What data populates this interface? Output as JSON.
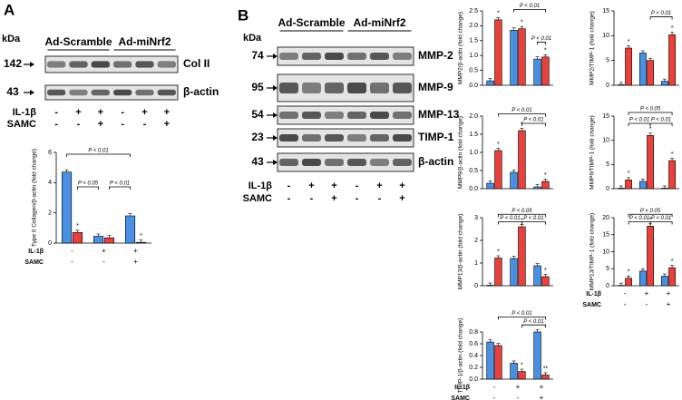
{
  "blots": [
    {
      "panel": "A",
      "kda": "kDa",
      "groups": [
        "Ad-Scramble",
        "Ad-miNrf2"
      ],
      "rows": [
        {
          "kda": "142",
          "name": "Col II"
        },
        {
          "kda": "43",
          "name": "β-actin"
        }
      ],
      "treatments": [
        {
          "label": "IL-1β",
          "signs": [
            "-",
            "+",
            "+",
            "-",
            "+",
            "+"
          ]
        },
        {
          "label": "SAMC",
          "signs": [
            "-",
            "-",
            "+",
            "-",
            "-",
            "+"
          ]
        }
      ]
    },
    {
      "panel": "B",
      "kda": "kDa",
      "groups": [
        "Ad-Scramble",
        "Ad-miNrf2"
      ],
      "rows": [
        {
          "kda": "74",
          "name": "MMP-2"
        },
        {
          "kda": "95",
          "name": "MMP-9"
        },
        {
          "kda": "54",
          "name": "MMP-13"
        },
        {
          "kda": "23",
          "name": "TIMP-1"
        },
        {
          "kda": "43",
          "name": "β-actin"
        }
      ],
      "treatments": [
        {
          "label": "IL-1β",
          "signs": [
            "-",
            "+",
            "+",
            "-",
            "+",
            "+"
          ]
        },
        {
          "label": "SAMC",
          "signs": [
            "-",
            "-",
            "+",
            "-",
            "-",
            "+"
          ]
        }
      ]
    }
  ],
  "chart_data": [
    {
      "type": "bar",
      "y_label": "Type II Collagen/β-actin (fold change)",
      "ylim": [
        0,
        6
      ],
      "yticks": [
        0,
        2,
        4,
        6
      ],
      "series": [
        {
          "color": "#4a90e2",
          "values": [
            4.7,
            0.45,
            1.8
          ]
        },
        {
          "color": "#e8403a",
          "values": [
            0.7,
            0.35,
            0.05
          ]
        }
      ],
      "annotations": [
        "P < 0.01",
        "P < 0.05",
        "P < 0.01",
        "*",
        "*"
      ],
      "treatments": [
        {
          "label": "IL-1β",
          "signs": [
            "-",
            "+",
            "+"
          ]
        },
        {
          "label": "SAMC",
          "signs": [
            "-",
            "-",
            "+"
          ]
        }
      ]
    },
    {
      "type": "bar",
      "y_label": "MMP2/β-actin (fold change)",
      "ylim": [
        0,
        2.5
      ],
      "yticks": [
        {
          "value": 0,
          "label": "0.0"
        },
        0.5,
        {
          "value": 1,
          "label": "1.0"
        },
        1.5,
        {
          "value": 2,
          "label": "2.0"
        },
        2.5
      ],
      "series": [
        {
          "color": "#4a90e2",
          "values": [
            0.15,
            1.85,
            0.88
          ]
        },
        {
          "color": "#e8403a",
          "values": [
            2.2,
            1.9,
            0.95
          ]
        }
      ],
      "annotations": [
        "P < 0.01",
        "P < 0.01",
        "*",
        "*",
        "*"
      ]
    },
    {
      "type": "bar",
      "y_label": "MMP2/TIMP-1 (fold change)",
      "ylim": [
        0,
        15
      ],
      "yticks": [
        0,
        5,
        10,
        15
      ],
      "series": [
        {
          "color": "#4a90e2",
          "values": [
            0.1,
            6.5,
            0.8
          ]
        },
        {
          "color": "#e8403a",
          "values": [
            7.5,
            5.0,
            10.2
          ]
        }
      ],
      "annotations": [
        "P < 0.01",
        "*",
        "*"
      ]
    },
    {
      "type": "bar",
      "y_label": "MMP9/β-actin (fold change)",
      "ylim": [
        0,
        2
      ],
      "yticks": [
        {
          "value": 0,
          "label": "0.0"
        },
        0.5,
        {
          "value": 1,
          "label": "1.0"
        },
        1.5,
        {
          "value": 2,
          "label": "2.0"
        }
      ],
      "series": [
        {
          "color": "#4a90e2",
          "values": [
            0.15,
            0.45,
            0.05
          ]
        },
        {
          "color": "#e8403a",
          "values": [
            1.05,
            1.6,
            0.2
          ]
        }
      ],
      "annotations": [
        "P < 0.01",
        "P < 0.01",
        "*",
        "*",
        "*"
      ]
    },
    {
      "type": "bar",
      "y_label": "MMP9/TIMP-1 (fold change)",
      "ylim": [
        0,
        15
      ],
      "yticks": [
        0,
        5,
        10,
        15
      ],
      "series": [
        {
          "color": "#4a90e2",
          "values": [
            0.1,
            1.5,
            0.1
          ]
        },
        {
          "color": "#e8403a",
          "values": [
            1.8,
            11,
            5.8
          ]
        }
      ],
      "annotations": [
        "P < 0.05",
        "P < 0.01",
        "P < 0.01",
        "*",
        "*",
        "*"
      ]
    },
    {
      "type": "bar",
      "y_label": "MMP13/β-actin (fold change)",
      "ylim": [
        0,
        3
      ],
      "yticks": [
        0,
        1,
        2,
        3
      ],
      "series": [
        {
          "color": "#4a90e2",
          "values": [
            0.02,
            1.2,
            0.88
          ]
        },
        {
          "color": "#e8403a",
          "values": [
            1.22,
            2.6,
            0.4
          ]
        }
      ],
      "annotations": [
        "P < 0.05",
        "P < 0.01",
        "P < 0.01",
        "*",
        "*",
        "*"
      ]
    },
    {
      "type": "bar",
      "y_label": "MMP13/TIMP-1 (fold change)",
      "ylim": [
        0,
        20
      ],
      "yticks": [
        0,
        5,
        10,
        15,
        20
      ],
      "series": [
        {
          "color": "#4a90e2",
          "values": [
            0.1,
            4.3,
            2.8
          ]
        },
        {
          "color": "#e8403a",
          "values": [
            2.2,
            17.5,
            5.3
          ]
        }
      ],
      "annotations": [
        "P < 0.05",
        "P < 0.01",
        "P < 0.01",
        "*",
        "*",
        "*"
      ],
      "treatments": [
        {
          "label": "IL-1β",
          "signs": [
            "-",
            "+",
            "+"
          ]
        },
        {
          "label": "SAMC",
          "signs": [
            "-",
            "-",
            "+"
          ]
        }
      ]
    },
    {
      "type": "bar",
      "y_label": "TIMP-1/β-actin (fold change)",
      "ylim": [
        0,
        0.8
      ],
      "yticks": [
        {
          "value": 0,
          "label": "0.0"
        },
        0.2,
        0.4,
        0.6,
        0.8
      ],
      "series": [
        {
          "color": "#4a90e2",
          "values": [
            0.63,
            0.27,
            0.8
          ]
        },
        {
          "color": "#e8403a",
          "values": [
            0.57,
            0.13,
            0.07
          ]
        }
      ],
      "annotations": [
        "P < 0.01",
        "P < 0.01",
        "*",
        "**"
      ],
      "treatments": [
        {
          "label": "IL-1β",
          "signs": [
            "-",
            "+",
            "+"
          ]
        },
        {
          "label": "SAMC",
          "signs": [
            "-",
            "-",
            "+"
          ]
        }
      ]
    }
  ]
}
